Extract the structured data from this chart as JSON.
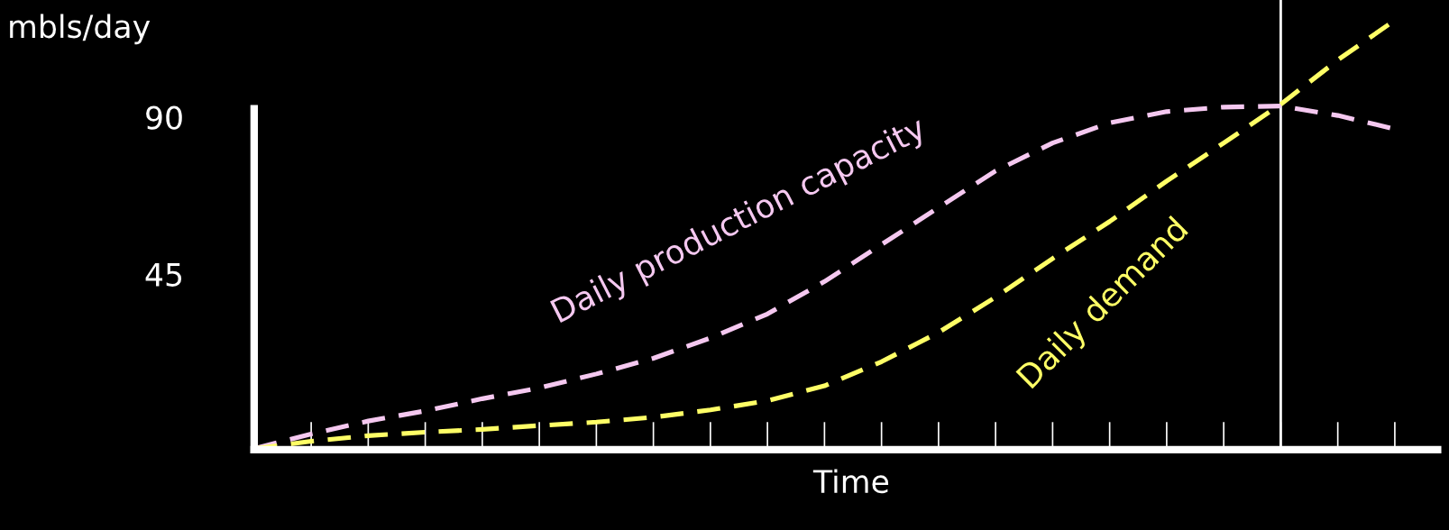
{
  "chart_data": {
    "type": "line",
    "xlabel": "Time",
    "ylabel": "mbls/day",
    "categories": [
      null,
      null,
      null,
      null,
      null,
      null,
      null,
      null,
      null,
      null,
      null,
      null,
      null,
      null,
      null,
      null,
      null,
      null,
      null,
      null,
      null
    ],
    "series": [
      {
        "name": "Daily production capacity",
        "color": "#f5c8f0",
        "values": [
          -5.0,
          -0.8,
          2.9,
          5.8,
          9.3,
          12.4,
          16.4,
          20.9,
          26.7,
          33.6,
          42.9,
          53.5,
          64.1,
          74.6,
          82.6,
          88.4,
          91.6,
          92.9,
          93.2,
          90.5,
          86.6
        ]
      },
      {
        "name": "Daily demand",
        "color": "#ffff66",
        "values": [
          -5.0,
          -2.9,
          -1.3,
          -0.3,
          0.5,
          1.6,
          2.6,
          4.0,
          6.1,
          8.7,
          13.0,
          19.9,
          28.3,
          38.4,
          49.5,
          60.1,
          71.7,
          82.6,
          93.7,
          106.4,
          117.8
        ]
      }
    ],
    "ylim": [
      -5.3,
      123.6
    ],
    "yticks": [
      45,
      90
    ],
    "line_style": "dashed",
    "marker": "none",
    "grid": false,
    "legend": false,
    "tick_labels": "y"
  }
}
